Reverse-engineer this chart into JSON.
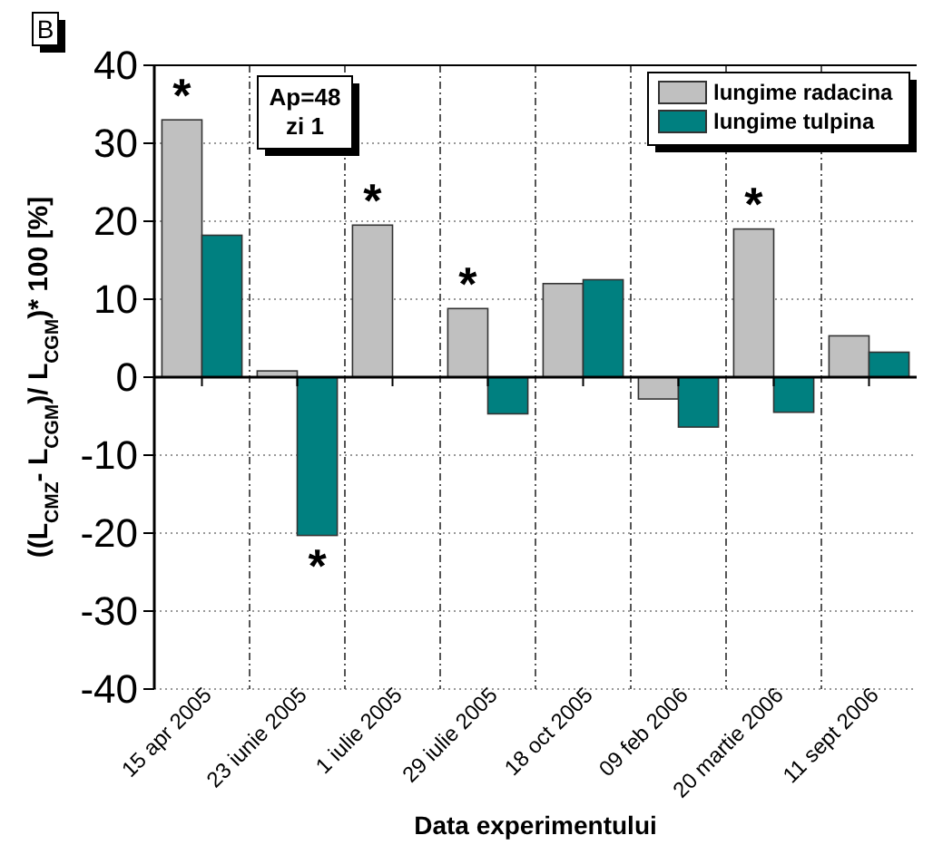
{
  "chart_data": {
    "type": "bar",
    "xlabel": "Data experimentului",
    "ylabel": "((L$_{CMZ}$- L$_{CGM}$)/ L$_{CGM}$)* 100 [%]",
    "categories": [
      "15 apr 2005",
      "23 iunie 2005",
      "1 iulie 2005",
      "29 iulie 2005",
      "18 oct 2005",
      "09 feb 2006",
      "20 martie 2006",
      "11 sept 2006"
    ],
    "series": [
      {
        "name": "lungime radacina",
        "color": "#c0c0c0",
        "values": [
          33,
          0.8,
          19.5,
          8.8,
          12,
          -2.8,
          19,
          5.3
        ]
      },
      {
        "name": "lungime tulpina",
        "color": "#008080",
        "values": [
          18.2,
          -20.3,
          0,
          -4.7,
          12.5,
          -6.4,
          -4.5,
          3.2
        ]
      }
    ],
    "ylim": [
      -40,
      40
    ],
    "yticks": [
      -40,
      -30,
      -20,
      -10,
      0,
      10,
      20,
      30,
      40
    ],
    "grid": true,
    "legend": "top right",
    "annotations": [
      "B",
      "Ap=48\nzi 1",
      {
        "text": "*",
        "x": "15 apr 2005",
        "y": 33
      },
      {
        "text": "*",
        "x": "23 iunie 2005",
        "y": -20.3
      },
      {
        "text": "*",
        "x": "1 iulie 2005",
        "y": 19.5
      },
      {
        "text": "*",
        "x": "29 iulie 2005",
        "y": 8.8
      },
      {
        "text": "*",
        "x": "20 martie 2006",
        "y": 19
      }
    ]
  }
}
